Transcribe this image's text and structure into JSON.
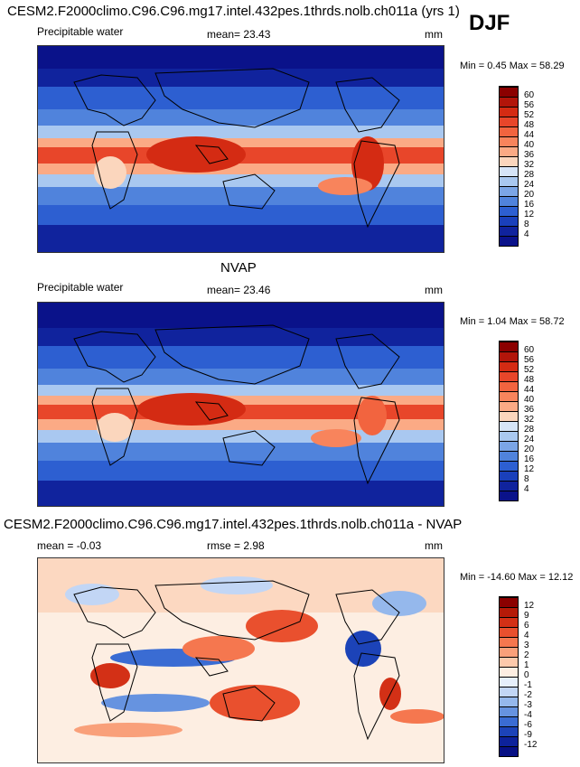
{
  "season": "DJF",
  "panels": [
    {
      "id": "model",
      "title": "CESM2.F2000climo.C96.C96.mg17.intel.432pes.1thrds.nolb.ch011a (yrs 1)",
      "variable": "Precipitable water",
      "mean_label": "mean=",
      "mean_value": "23.43",
      "units": "mm",
      "minmax": "Min =  0.45 Max =  58.29",
      "colorbar_levels": [
        "60",
        "56",
        "52",
        "48",
        "44",
        "40",
        "36",
        "32",
        "28",
        "24",
        "20",
        "16",
        "12",
        "8",
        "4"
      ],
      "colors": [
        "#8b0000",
        "#b2150a",
        "#d42b13",
        "#e8462a",
        "#f2643f",
        "#f8845c",
        "#fbaa85",
        "#fbd6bd",
        "#d6e5f8",
        "#a9c8f0",
        "#7ba5e6",
        "#5083dc",
        "#2d5fd1",
        "#1a40bb",
        "#10239d",
        "#0a128a"
      ]
    },
    {
      "id": "obs",
      "title": "NVAP",
      "variable": "Precipitable water",
      "mean_label": "mean=",
      "mean_value": "23.46",
      "units": "mm",
      "minmax": "Min =  1.04 Max =  58.72",
      "colorbar_levels": [
        "60",
        "56",
        "52",
        "48",
        "44",
        "40",
        "36",
        "32",
        "28",
        "24",
        "20",
        "16",
        "12",
        "8",
        "4"
      ],
      "colors": [
        "#8b0000",
        "#b2150a",
        "#d42b13",
        "#e8462a",
        "#f2643f",
        "#f8845c",
        "#fbaa85",
        "#fbd6bd",
        "#d6e5f8",
        "#a9c8f0",
        "#7ba5e6",
        "#5083dc",
        "#2d5fd1",
        "#1a40bb",
        "#10239d",
        "#0a128a"
      ]
    },
    {
      "id": "diff",
      "title": "CESM2.F2000climo.C96.C96.mg17.intel.432pes.1thrds.nolb.ch011a - NVAP",
      "mean_label": "mean =",
      "mean_value": "-0.03",
      "rmse_label": "rmse =",
      "rmse_value": "2.98",
      "units": "mm",
      "minmax": "Min = -14.60 Max =  12.12",
      "colorbar_levels": [
        "12",
        "9",
        "6",
        "4",
        "3",
        "2",
        "1",
        "0",
        "-1",
        "-2",
        "-3",
        "-4",
        "-6",
        "-9",
        "-12"
      ],
      "colors": [
        "#8b0000",
        "#b51a08",
        "#d33016",
        "#e9502e",
        "#f5774f",
        "#f9a07a",
        "#fcc9ab",
        "#fdeee2",
        "#e6effb",
        "#c2d6f5",
        "#95b8ec",
        "#6693e0",
        "#3a6cd3",
        "#1c43b8",
        "#0d229b",
        "#071085"
      ]
    }
  ],
  "chart_data": [
    {
      "type": "heatmap",
      "title": "CESM2.F2000climo.C96.C96.mg17.intel.432pes.1thrds.nolb.ch011a (yrs 1)",
      "variable": "Precipitable water",
      "units": "mm",
      "mean": 23.43,
      "min": 0.45,
      "max": 58.29,
      "levels": [
        4,
        8,
        12,
        16,
        20,
        24,
        28,
        32,
        36,
        40,
        44,
        48,
        52,
        56,
        60
      ]
    },
    {
      "type": "heatmap",
      "title": "NVAP",
      "variable": "Precipitable water",
      "units": "mm",
      "mean": 23.46,
      "min": 1.04,
      "max": 58.72,
      "levels": [
        4,
        8,
        12,
        16,
        20,
        24,
        28,
        32,
        36,
        40,
        44,
        48,
        52,
        56,
        60
      ]
    },
    {
      "type": "heatmap",
      "title": "CESM2.F2000climo.C96.C96.mg17.intel.432pes.1thrds.nolb.ch011a - NVAP",
      "units": "mm",
      "mean": -0.03,
      "rmse": 2.98,
      "min": -14.6,
      "max": 12.12,
      "levels": [
        -12,
        -9,
        -6,
        -4,
        -3,
        -2,
        -1,
        0,
        1,
        2,
        3,
        4,
        6,
        9,
        12
      ]
    }
  ]
}
